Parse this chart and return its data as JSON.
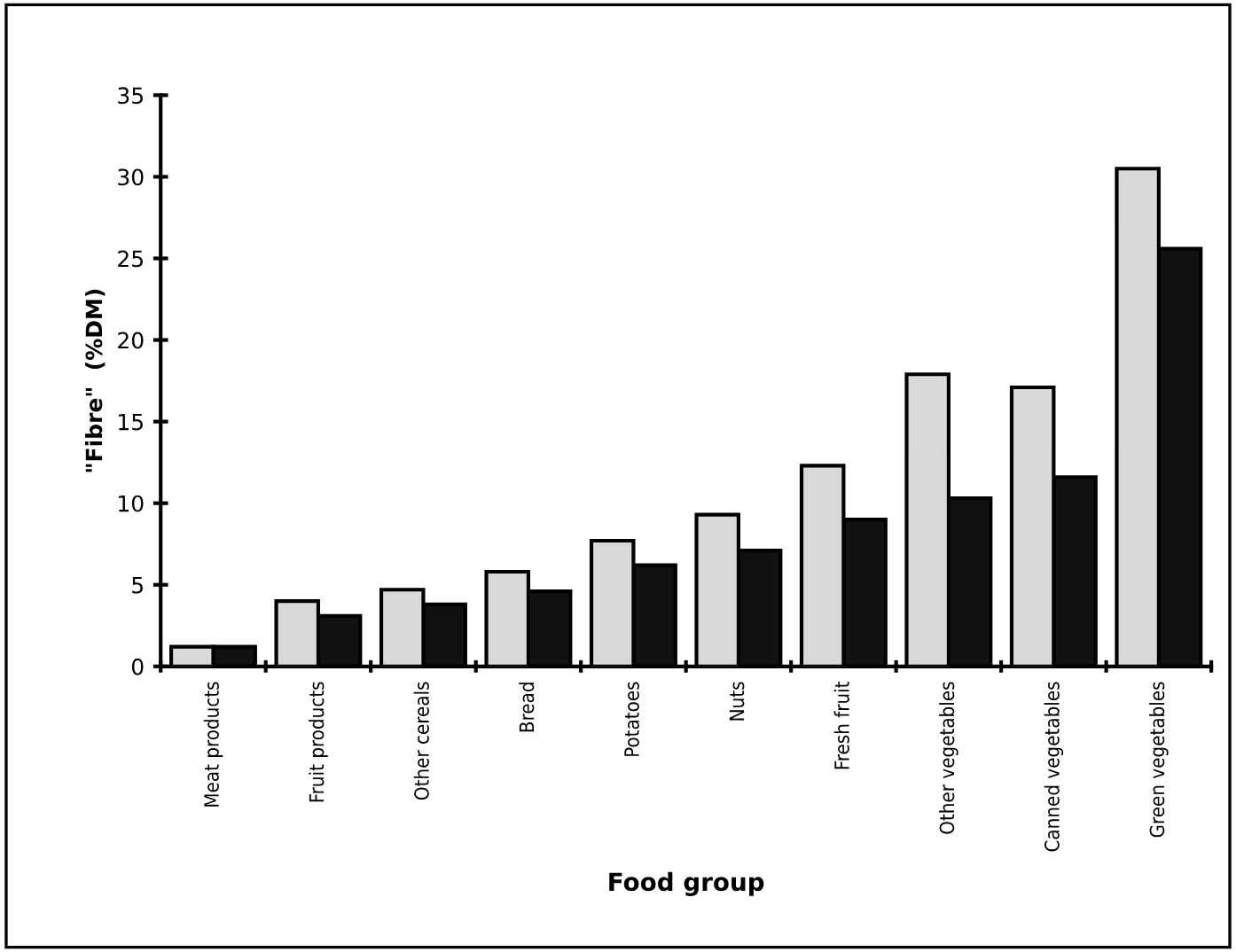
{
  "chart_data": {
    "type": "bar",
    "xlabel": "Food group",
    "ylabel": "\"Fibre\"  (%DM)",
    "categories": [
      "Meat products",
      "Fruit products",
      "Other cereals",
      "Bread",
      "Potatoes",
      "Nuts",
      "Fresh fruit",
      "Other vegetables",
      "Canned vegetables",
      "Green vegetables"
    ],
    "series": [
      {
        "color": "#d9d9d9",
        "values": [
          1.2,
          4.0,
          4.7,
          5.8,
          7.7,
          9.3,
          12.3,
          17.9,
          17.1,
          30.5
        ]
      },
      {
        "color": "#111111",
        "values": [
          1.2,
          3.1,
          3.8,
          4.6,
          6.2,
          7.1,
          9.0,
          10.3,
          11.6,
          25.6
        ]
      }
    ],
    "ylim": [
      0,
      35
    ],
    "yticks": [
      0,
      5,
      10,
      15,
      20,
      25,
      30,
      35
    ],
    "grid": false,
    "legend": false
  }
}
